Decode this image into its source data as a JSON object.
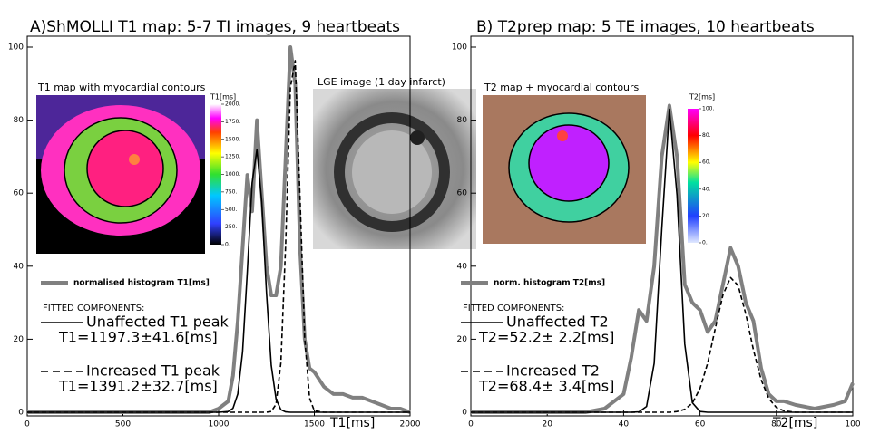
{
  "chart_data": [
    {
      "type": "line",
      "title": "A)ShMOLLI T1 map: 5-7 TI images, 9 heartbeats",
      "xlabel": "T1[ms]",
      "xlim": [
        0,
        2000
      ],
      "xticks": [
        0,
        500,
        1000,
        1500,
        2000
      ],
      "ylim": [
        0,
        100
      ],
      "yticks": [
        0,
        20,
        40,
        60,
        80,
        100
      ],
      "x": [
        0,
        900,
        950,
        1000,
        1050,
        1075,
        1100,
        1125,
        1150,
        1175,
        1200,
        1225,
        1250,
        1275,
        1300,
        1325,
        1350,
        1375,
        1400,
        1425,
        1450,
        1475,
        1500,
        1550,
        1600,
        1650,
        1700,
        1750,
        1800,
        1850,
        1900,
        1950,
        2000
      ],
      "legend_header": "FITTED COMPONENTS:",
      "series": [
        {
          "name": "normalised histogram T1[ms]",
          "color": "#808080",
          "dashed": false,
          "values": [
            0,
            0,
            0,
            1,
            3,
            10,
            25,
            45,
            65,
            55,
            80,
            60,
            40,
            32,
            32,
            40,
            70,
            100,
            90,
            45,
            20,
            12,
            11,
            7,
            5,
            5,
            4,
            4,
            3,
            2,
            1,
            1,
            0
          ]
        },
        {
          "name": "Unaffected T1 peak",
          "stats": "T1=1197.3±41.6[ms]",
          "color": "#000000",
          "dashed": false,
          "values": [
            0,
            0,
            0,
            0,
            0.2,
            1.1,
            5.0,
            16.6,
            38.5,
            62.8,
            71.9,
            57.7,
            32.5,
            12.8,
            3.6,
            0.7,
            0.1,
            0,
            0,
            0,
            0,
            0,
            0,
            0,
            0,
            0,
            0,
            0,
            0,
            0,
            0,
            0,
            0
          ]
        },
        {
          "name": "Increased T1 peak",
          "stats": "T1=1391.2±32.7[ms]",
          "color": "#000000",
          "dashed": true,
          "values": [
            0,
            0,
            0,
            0,
            0,
            0,
            0,
            0,
            0,
            0,
            0,
            0,
            0,
            0.2,
            2.2,
            13.5,
            46.2,
            88.9,
            96.3,
            58.8,
            20.2,
            3.9,
            0.4,
            0,
            0,
            0,
            0,
            0,
            0,
            0,
            0,
            0,
            0
          ]
        }
      ],
      "insets": [
        {
          "title": "T1 map with myocardial contours",
          "colorbar_label": "T1[ms]",
          "colorbar_lim": [
            0,
            2000
          ],
          "colorbar_ticks": [
            {
              "value": 2000,
              "label": "2000."
            },
            {
              "value": 1750,
              "label": "1750."
            },
            {
              "value": 1500,
              "label": "1500."
            },
            {
              "value": 1250,
              "label": "1250."
            },
            {
              "value": 1000,
              "label": "1000."
            },
            {
              "value": 750,
              "label": "750."
            },
            {
              "value": 500,
              "label": "500."
            },
            {
              "value": 250,
              "label": "250."
            },
            {
              "value": 0,
              "label": "0."
            }
          ]
        },
        {
          "title": "LGE image (1 day infarct)"
        }
      ]
    },
    {
      "type": "line",
      "title": "B) T2prep map: 5 TE images, 10 heartbeats",
      "xlabel": "T2[ms]",
      "xlim": [
        0,
        100
      ],
      "xticks": [
        0,
        20,
        40,
        60,
        80,
        100
      ],
      "ylim": [
        0,
        100
      ],
      "yticks": [
        0,
        20,
        40,
        60,
        80,
        100
      ],
      "x": [
        0,
        30,
        35,
        40,
        42,
        44,
        46,
        48,
        50,
        52,
        54,
        56,
        58,
        60,
        62,
        64,
        66,
        68,
        70,
        72,
        74,
        76,
        78,
        80,
        82,
        85,
        90,
        95,
        98,
        100
      ],
      "legend_header": "FITTED COMPONENTS:",
      "series": [
        {
          "name": "norm. histogram T2[ms]",
          "color": "#808080",
          "dashed": false,
          "values": [
            0,
            0,
            1,
            5,
            15,
            28,
            25,
            40,
            70,
            84,
            70,
            35,
            30,
            28,
            22,
            25,
            35,
            45,
            40,
            30,
            25,
            12,
            5,
            3,
            3,
            2,
            1,
            2,
            3,
            8
          ]
        },
        {
          "name": "Unaffected T2",
          "stats": "T2=52.2± 2.2[ms]",
          "color": "#000000",
          "dashed": false,
          "values": [
            0,
            0,
            0,
            0,
            0,
            0.1,
            1.6,
            13.4,
            50.3,
            83,
            59.4,
            18.7,
            2.6,
            0.2,
            0,
            0,
            0,
            0,
            0,
            0,
            0,
            0,
            0,
            0,
            0,
            0,
            0,
            0,
            0,
            0
          ]
        },
        {
          "name": "Increased T2",
          "stats": "T2=68.4± 3.4[ms]",
          "color": "#000000",
          "dashed": true,
          "values": [
            0,
            0,
            0,
            0,
            0,
            0,
            0,
            0,
            0,
            0,
            0.2,
            0.8,
            2.5,
            6.5,
            13.4,
            22.9,
            32.1,
            36.9,
            34.7,
            26.9,
            17.1,
            8.9,
            3.8,
            1.3,
            0.4,
            0,
            0,
            0,
            0,
            0
          ]
        }
      ],
      "insets": [
        {
          "title": "T2 map + myocardial contours",
          "colorbar_label": "T2[ms]",
          "colorbar_lim": [
            0,
            100
          ],
          "colorbar_ticks": [
            {
              "value": 100,
              "label": "100."
            },
            {
              "value": 80,
              "label": "80."
            },
            {
              "value": 60,
              "label": "60."
            },
            {
              "value": 40,
              "label": "40."
            },
            {
              "value": 20,
              "label": "20."
            },
            {
              "value": 0,
              "label": "0."
            }
          ]
        }
      ]
    }
  ]
}
